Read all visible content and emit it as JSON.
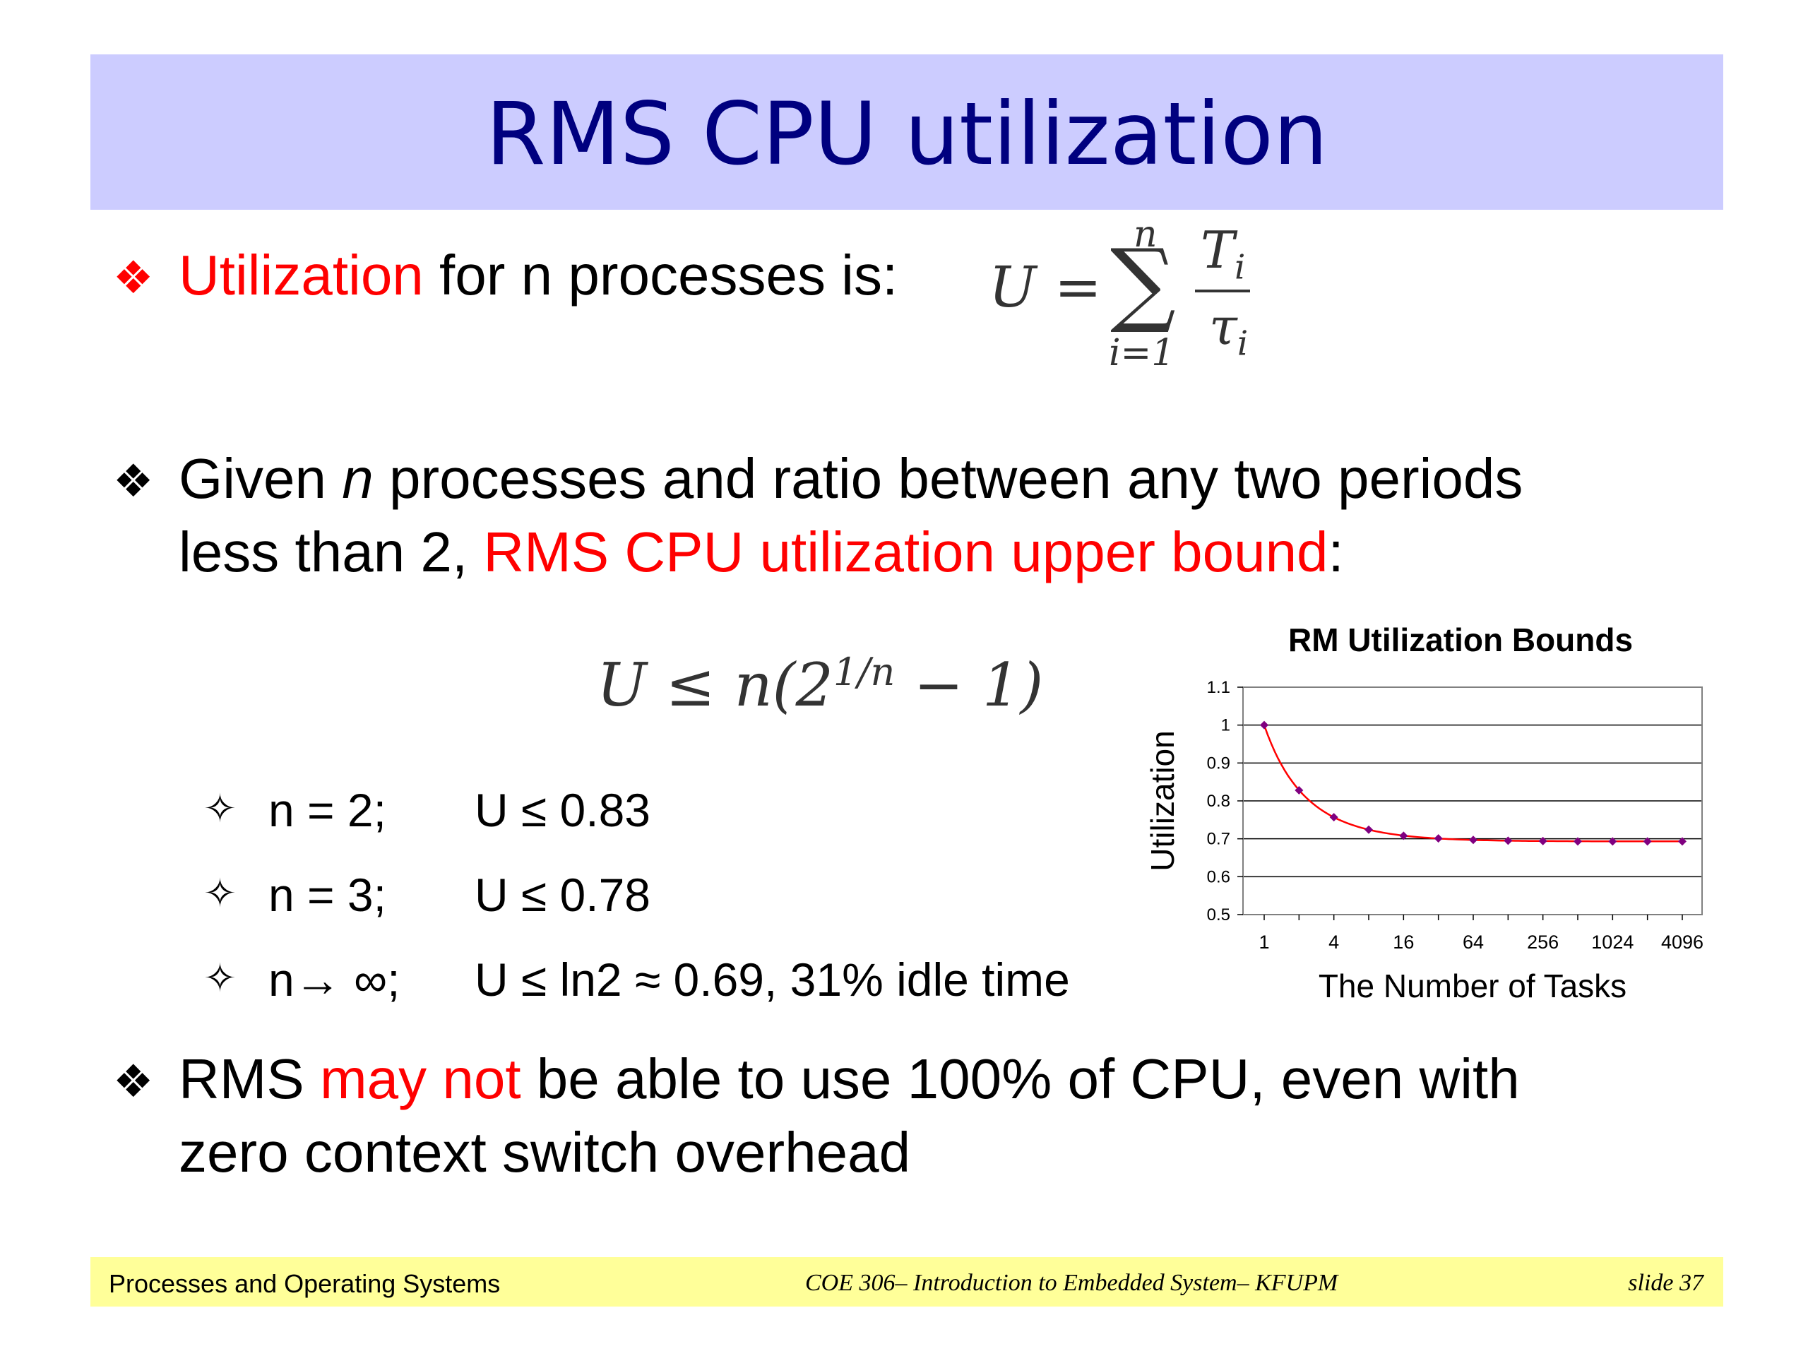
{
  "title": "RMS CPU utilization",
  "bullet1": {
    "red": "Utilization",
    "rest": " for n processes is:"
  },
  "formula1": {
    "lhs": "U =",
    "sum": "∑",
    "upper": "n",
    "lower": "i=1",
    "num": "T",
    "num_sub": "i",
    "den": "τ",
    "den_sub": "i"
  },
  "bullet2": {
    "line1_a": "Given ",
    "line1_n": "n",
    "line1_b": " processes and ratio between any two periods",
    "line2_a": "less than 2, ",
    "line2_red": "RMS CPU utilization upper bound",
    "line2_b": ":"
  },
  "formula2": {
    "lhs": "U ≤ n(2",
    "exp": "1/n",
    "rhs": " − 1)"
  },
  "cases": [
    {
      "n": "n = 2;",
      "u": "U ≤ 0.83"
    },
    {
      "n": "n = 3;",
      "u": "U ≤ 0.78"
    },
    {
      "n": "n→ ∞;",
      "u": "U ≤ ln2  ≈ 0.69, 31% idle time"
    }
  ],
  "bullet3": {
    "a": "RMS ",
    "red": "may not",
    "b": " be able to use 100% of CPU, even with",
    "line2": "zero context switch overhead"
  },
  "footer": {
    "left": "Processes and Operating Systems",
    "center": "COE 306– Introduction to Embedded System– KFUPM",
    "right": "slide 37"
  },
  "chart_data": {
    "type": "line",
    "title": "RM Utilization Bounds",
    "xlabel": "The Number of Tasks",
    "ylabel": "Utilization",
    "x": [
      1,
      2,
      4,
      8,
      16,
      32,
      64,
      128,
      256,
      512,
      1024,
      2048,
      4096
    ],
    "x_ticks": [
      "1",
      "4",
      "16",
      "64",
      "256",
      "1024",
      "4096"
    ],
    "y_ticks": [
      "1.1",
      "1",
      "0.9",
      "0.8",
      "0.7",
      "0.6",
      "0.5"
    ],
    "values": [
      1.0,
      0.828,
      0.757,
      0.724,
      0.708,
      0.701,
      0.697,
      0.695,
      0.694,
      0.693,
      0.693,
      0.693,
      0.693
    ],
    "ylim": [
      0.5,
      1.1
    ],
    "x_scale": "log2",
    "grid": "horizontal",
    "line_color": "#ff0000",
    "marker_color": "#800080"
  }
}
